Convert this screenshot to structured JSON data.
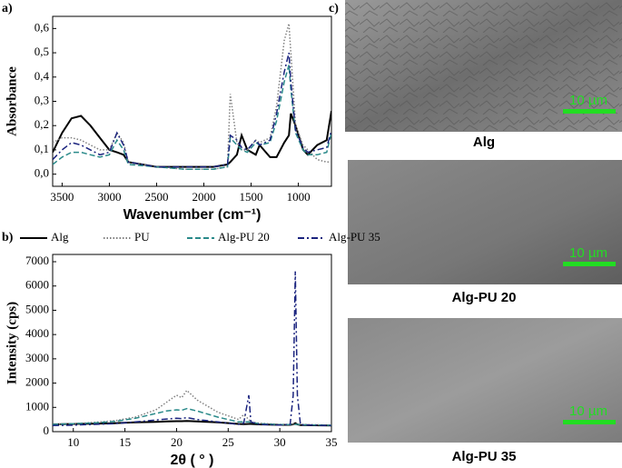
{
  "chart_data": [
    {
      "type": "line",
      "panel": "a)",
      "ylabel": "Absorbance",
      "xlabel": "Wavenumber (cm⁻¹)",
      "x": [
        3600,
        3500,
        3400,
        3300,
        3200,
        3100,
        3000,
        2920,
        2850,
        2800,
        2500,
        2200,
        1900,
        1750,
        1720,
        1650,
        1600,
        1540,
        1450,
        1410,
        1300,
        1230,
        1150,
        1100,
        1080,
        1030,
        950,
        900,
        800,
        700,
        650
      ],
      "xlim": [
        3600,
        650
      ],
      "xticks": [
        3500,
        3000,
        2500,
        2000,
        1500,
        1000
      ],
      "ylim": [
        -0.05,
        0.65
      ],
      "yticks": [
        {
          "value": 0,
          "label": "0,0"
        },
        {
          "value": 0.1,
          "label": "0,1"
        },
        {
          "value": 0.2,
          "label": "0,2"
        },
        {
          "value": 0.3,
          "label": "0,3"
        },
        {
          "value": 0.4,
          "label": "0,4"
        },
        {
          "value": 0.5,
          "label": "0,5"
        },
        {
          "value": 0.6,
          "label": "0,6"
        }
      ],
      "series": [
        {
          "color": "#000000",
          "style": "solid",
          "values": [
            0.09,
            0.17,
            0.23,
            0.24,
            0.2,
            0.15,
            0.1,
            0.09,
            0.08,
            0.05,
            0.03,
            0.03,
            0.03,
            0.04,
            0.05,
            0.08,
            0.16,
            0.1,
            0.08,
            0.12,
            0.07,
            0.07,
            0.13,
            0.16,
            0.25,
            0.2,
            0.1,
            0.08,
            0.12,
            0.14,
            0.26
          ]
        },
        {
          "color": "#808080",
          "style": "dotted",
          "values": [
            0.13,
            0.15,
            0.15,
            0.14,
            0.12,
            0.1,
            0.1,
            0.17,
            0.13,
            0.05,
            0.03,
            0.02,
            0.02,
            0.03,
            0.33,
            0.13,
            0.1,
            0.1,
            0.14,
            0.13,
            0.15,
            0.28,
            0.55,
            0.62,
            0.5,
            0.2,
            0.12,
            0.1,
            0.06,
            0.05,
            0.05
          ]
        },
        {
          "color": "#2a8a8a",
          "style": "dashed",
          "values": [
            0.04,
            0.07,
            0.09,
            0.09,
            0.08,
            0.07,
            0.08,
            0.14,
            0.1,
            0.04,
            0.03,
            0.02,
            0.02,
            0.03,
            0.15,
            0.12,
            0.1,
            0.09,
            0.13,
            0.12,
            0.13,
            0.22,
            0.38,
            0.45,
            0.35,
            0.17,
            0.1,
            0.08,
            0.08,
            0.09,
            0.17
          ]
        },
        {
          "color": "#1a237e",
          "style": "dashdot",
          "values": [
            0.06,
            0.1,
            0.13,
            0.12,
            0.1,
            0.08,
            0.09,
            0.17,
            0.12,
            0.05,
            0.03,
            0.03,
            0.03,
            0.04,
            0.16,
            0.14,
            0.11,
            0.1,
            0.14,
            0.12,
            0.14,
            0.25,
            0.42,
            0.5,
            0.38,
            0.18,
            0.11,
            0.09,
            0.1,
            0.11,
            0.18
          ]
        }
      ]
    },
    {
      "type": "line",
      "panel": "b)",
      "ylabel": "Intensity (cps)",
      "xlabel": "2θ ( ° )",
      "legend": "top",
      "x": [
        8,
        10,
        12,
        14,
        16,
        18,
        19,
        20,
        20.5,
        21,
        22,
        24,
        26,
        26.5,
        27,
        27.2,
        28,
        30,
        31,
        31.3,
        31.5,
        31.7,
        32,
        34,
        35
      ],
      "xlim": [
        8,
        35
      ],
      "xticks": [
        10,
        15,
        20,
        25,
        30,
        35
      ],
      "ylim": [
        0,
        7300
      ],
      "yticks": [
        0,
        1000,
        2000,
        3000,
        4000,
        5000,
        6000,
        7000
      ],
      "series": [
        {
          "name": "Alg",
          "color": "#000000",
          "style": "solid",
          "values": [
            300,
            320,
            330,
            350,
            380,
            400,
            420,
            430,
            430,
            440,
            420,
            380,
            320,
            310,
            320,
            320,
            300,
            280,
            280,
            300,
            350,
            300,
            270,
            260,
            250
          ]
        },
        {
          "name": "PU",
          "color": "#808080",
          "style": "dotted",
          "values": [
            300,
            330,
            380,
            450,
            600,
            900,
            1200,
            1500,
            1400,
            1700,
            1300,
            800,
            500,
            700,
            500,
            400,
            350,
            300,
            300,
            300,
            300,
            300,
            300,
            280,
            270
          ]
        },
        {
          "name": "Alg-PU 20",
          "color": "#2a8a8a",
          "style": "dashed",
          "values": [
            300,
            330,
            360,
            420,
            550,
            750,
            850,
            900,
            880,
            950,
            850,
            600,
            400,
            400,
            400,
            380,
            330,
            290,
            290,
            300,
            300,
            300,
            280,
            270,
            260
          ]
        },
        {
          "name": "Alg-PU 35",
          "color": "#1a237e",
          "style": "dashdot",
          "values": [
            250,
            270,
            300,
            330,
            400,
            480,
            520,
            550,
            540,
            580,
            500,
            400,
            300,
            350,
            1500,
            400,
            300,
            270,
            300,
            1500,
            6600,
            1500,
            280,
            260,
            250
          ]
        }
      ]
    }
  ],
  "micrographs": {
    "panel": "c)",
    "images": [
      {
        "caption": "Alg",
        "scale_bar": "10 µm"
      },
      {
        "caption": "Alg-PU 20",
        "scale_bar": "10 µm"
      },
      {
        "caption": "Alg-PU 35",
        "scale_bar": "10 µm"
      }
    ]
  }
}
